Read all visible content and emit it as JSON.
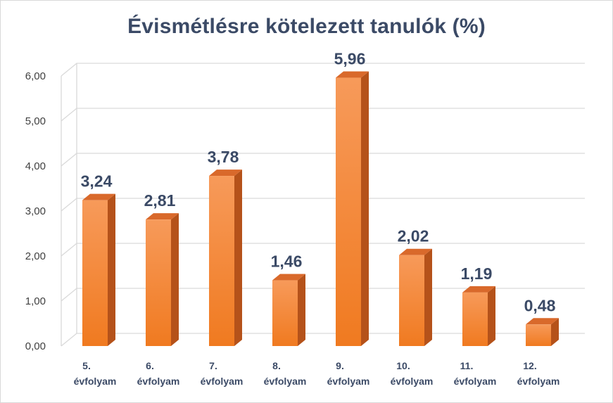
{
  "chart_data": {
    "type": "bar",
    "title": "Évismétlésre kötelezett tanulók (%)",
    "categories": [
      [
        "5.",
        "évfolyam"
      ],
      [
        "6.",
        "évfolyam"
      ],
      [
        "7.",
        "évfolyam"
      ],
      [
        "8.",
        "évfolyam"
      ],
      [
        "9.",
        "évfolyam"
      ],
      [
        "10.",
        "évfolyam"
      ],
      [
        "11.",
        "évfolyam"
      ],
      [
        "12.",
        "évfolyam"
      ]
    ],
    "values": [
      3.24,
      2.81,
      3.78,
      1.46,
      5.96,
      2.02,
      1.19,
      0.48
    ],
    "data_labels": [
      "3,24",
      "2,81",
      "3,78",
      "1,46",
      "5,96",
      "2,02",
      "1,19",
      "0,48"
    ],
    "y_ticks": [
      0,
      1,
      2,
      3,
      4,
      5,
      6
    ],
    "y_tick_labels": [
      "0,00",
      "1,00",
      "2,00",
      "3,00",
      "4,00",
      "5,00",
      "6,00"
    ],
    "ylim": [
      0,
      6
    ],
    "xlabel": "",
    "ylabel": "",
    "grid": true,
    "legend": "none",
    "style": "3d-column",
    "colors": {
      "bar_front_top": "#f79a5a",
      "bar_front_bottom": "#f07a20",
      "bar_side": "#b5521a",
      "bar_top": "#d9692b",
      "grid": "#d9d9d9",
      "title": "#3b4a66",
      "labels": "#3b4a66"
    }
  }
}
